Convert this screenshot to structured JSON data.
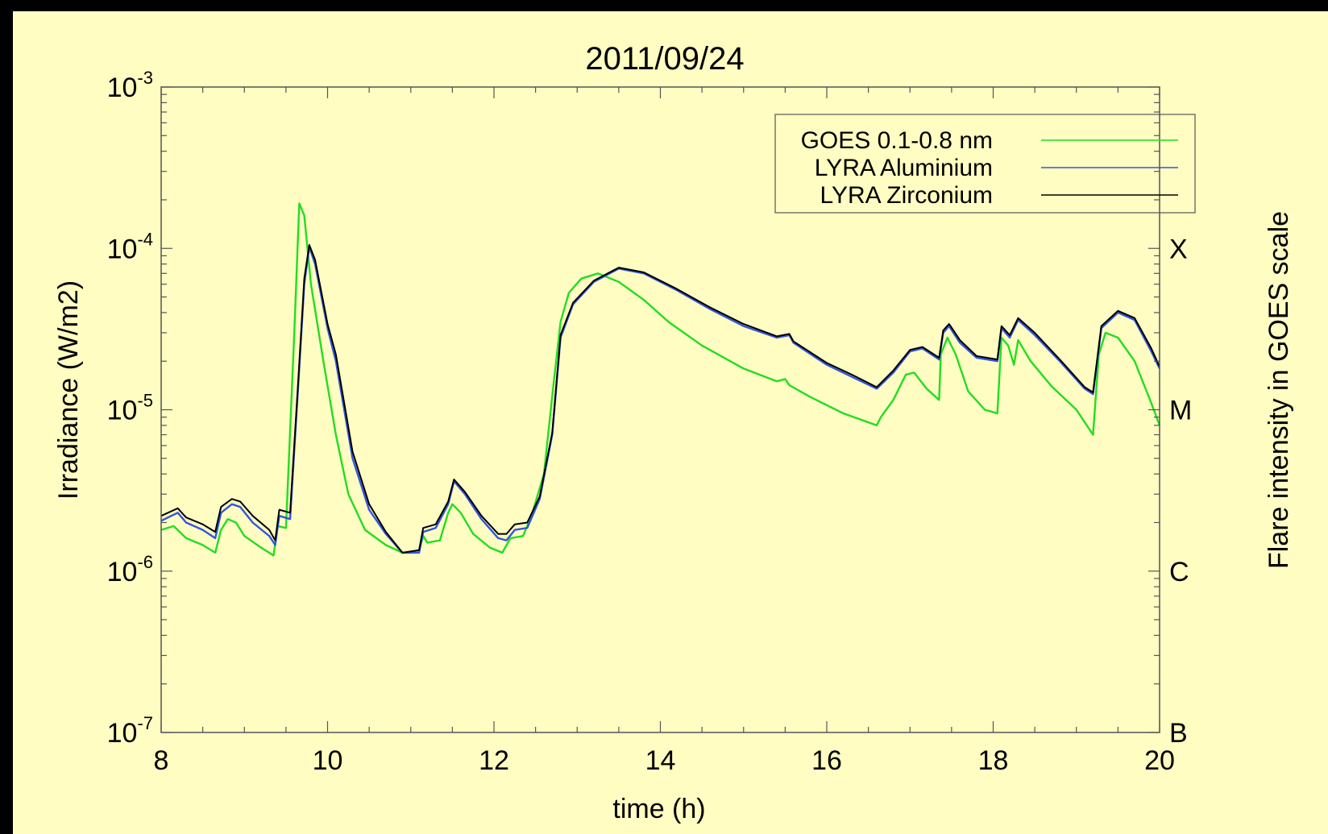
{
  "chart_data": {
    "type": "line",
    "title": "2011/09/24",
    "xlabel": "time (h)",
    "ylabel": "Irradiance (W/m2)",
    "y2label": "Flare intensity in GOES scale",
    "xlim": [
      8,
      20
    ],
    "ylim": [
      1e-07,
      0.001
    ],
    "yscale": "log",
    "x_ticks": [
      "8",
      "10",
      "12",
      "14",
      "16",
      "18",
      "20"
    ],
    "y_ticks": [
      {
        "base": "10",
        "exp": "-7",
        "value": 1e-07
      },
      {
        "base": "10",
        "exp": "-6",
        "value": 1e-06
      },
      {
        "base": "10",
        "exp": "-5",
        "value": 1e-05
      },
      {
        "base": "10",
        "exp": "-4",
        "value": 0.0001
      },
      {
        "base": "10",
        "exp": "-3",
        "value": 0.001
      }
    ],
    "goes_classes": [
      {
        "label": "B",
        "value": 1e-07
      },
      {
        "label": "C",
        "value": 1e-06
      },
      {
        "label": "M",
        "value": 1e-05
      },
      {
        "label": "X",
        "value": 0.0001
      }
    ],
    "legend_position": "top-right",
    "grid": false,
    "series": [
      {
        "name": "GOES 0.1-0.8 nm",
        "color": "#22dd22",
        "points": [
          [
            8.0,
            1.8e-06
          ],
          [
            8.15,
            1.9e-06
          ],
          [
            8.3,
            1.6e-06
          ],
          [
            8.5,
            1.45e-06
          ],
          [
            8.65,
            1.3e-06
          ],
          [
            8.72,
            1.8e-06
          ],
          [
            8.8,
            2.1e-06
          ],
          [
            8.9,
            2e-06
          ],
          [
            9.0,
            1.65e-06
          ],
          [
            9.2,
            1.4e-06
          ],
          [
            9.35,
            1.25e-06
          ],
          [
            9.4,
            1.9e-06
          ],
          [
            9.5,
            1.85e-06
          ],
          [
            9.6,
            3e-05
          ],
          [
            9.66,
            0.00019
          ],
          [
            9.72,
            0.00016
          ],
          [
            9.8,
            6e-05
          ],
          [
            9.95,
            2e-05
          ],
          [
            10.1,
            7e-06
          ],
          [
            10.25,
            3e-06
          ],
          [
            10.45,
            1.8e-06
          ],
          [
            10.7,
            1.45e-06
          ],
          [
            10.9,
            1.3e-06
          ],
          [
            11.0,
            1.3e-06
          ],
          [
            11.1,
            1.35e-06
          ],
          [
            11.15,
            1.65e-06
          ],
          [
            11.2,
            1.5e-06
          ],
          [
            11.35,
            1.55e-06
          ],
          [
            11.45,
            2.3e-06
          ],
          [
            11.5,
            2.6e-06
          ],
          [
            11.6,
            2.3e-06
          ],
          [
            11.75,
            1.7e-06
          ],
          [
            11.95,
            1.4e-06
          ],
          [
            12.1,
            1.3e-06
          ],
          [
            12.2,
            1.6e-06
          ],
          [
            12.35,
            1.65e-06
          ],
          [
            12.45,
            2.2e-06
          ],
          [
            12.6,
            4e-06
          ],
          [
            12.72,
            1.5e-05
          ],
          [
            12.8,
            3.5e-05
          ],
          [
            12.9,
            5.3e-05
          ],
          [
            13.05,
            6.5e-05
          ],
          [
            13.25,
            7e-05
          ],
          [
            13.5,
            6.2e-05
          ],
          [
            13.8,
            4.8e-05
          ],
          [
            14.1,
            3.5e-05
          ],
          [
            14.5,
            2.5e-05
          ],
          [
            15.0,
            1.8e-05
          ],
          [
            15.4,
            1.5e-05
          ],
          [
            15.5,
            1.55e-05
          ],
          [
            15.55,
            1.42e-05
          ],
          [
            15.8,
            1.2e-05
          ],
          [
            16.2,
            9.5e-06
          ],
          [
            16.6,
            8e-06
          ],
          [
            16.65,
            9e-06
          ],
          [
            16.8,
            1.15e-05
          ],
          [
            16.95,
            1.65e-05
          ],
          [
            17.05,
            1.7e-05
          ],
          [
            17.2,
            1.35e-05
          ],
          [
            17.35,
            1.15e-05
          ],
          [
            17.37,
            2.2e-05
          ],
          [
            17.45,
            2.8e-05
          ],
          [
            17.55,
            2.2e-05
          ],
          [
            17.7,
            1.3e-05
          ],
          [
            17.9,
            1e-05
          ],
          [
            18.05,
            9.5e-06
          ],
          [
            18.1,
            2.8e-05
          ],
          [
            18.18,
            2.5e-05
          ],
          [
            18.25,
            1.9e-05
          ],
          [
            18.3,
            2.7e-05
          ],
          [
            18.45,
            2e-05
          ],
          [
            18.7,
            1.4e-05
          ],
          [
            19.0,
            1e-05
          ],
          [
            19.2,
            7e-06
          ],
          [
            19.27,
            2.2e-05
          ],
          [
            19.35,
            3e-05
          ],
          [
            19.5,
            2.8e-05
          ],
          [
            19.7,
            2e-05
          ],
          [
            19.9,
            1.1e-05
          ],
          [
            20.0,
            8e-06
          ]
        ]
      },
      {
        "name": "LYRA Aluminium",
        "color": "#3355dd",
        "points": [
          [
            8.0,
            2.05e-06
          ],
          [
            8.2,
            2.3e-06
          ],
          [
            8.3,
            2e-06
          ],
          [
            8.5,
            1.8e-06
          ],
          [
            8.65,
            1.6e-06
          ],
          [
            8.72,
            2.3e-06
          ],
          [
            8.85,
            2.6e-06
          ],
          [
            8.95,
            2.5e-06
          ],
          [
            9.1,
            2e-06
          ],
          [
            9.3,
            1.65e-06
          ],
          [
            9.37,
            1.45e-06
          ],
          [
            9.42,
            2.2e-06
          ],
          [
            9.55,
            2.1e-06
          ],
          [
            9.65,
            1.5e-05
          ],
          [
            9.72,
            6e-05
          ],
          [
            9.78,
            0.000102
          ],
          [
            9.85,
            8e-05
          ],
          [
            10.0,
            3.2e-05
          ],
          [
            10.1,
            2e-05
          ],
          [
            10.3,
            5e-06
          ],
          [
            10.5,
            2.4e-06
          ],
          [
            10.7,
            1.7e-06
          ],
          [
            10.9,
            1.3e-06
          ],
          [
            11.1,
            1.3e-06
          ],
          [
            11.15,
            1.75e-06
          ],
          [
            11.3,
            1.85e-06
          ],
          [
            11.45,
            2.6e-06
          ],
          [
            11.52,
            3.6e-06
          ],
          [
            11.65,
            3e-06
          ],
          [
            11.85,
            2.1e-06
          ],
          [
            12.05,
            1.6e-06
          ],
          [
            12.15,
            1.55e-06
          ],
          [
            12.25,
            1.8e-06
          ],
          [
            12.4,
            1.85e-06
          ],
          [
            12.55,
            2.8e-06
          ],
          [
            12.7,
            7e-06
          ],
          [
            12.8,
            2.8e-05
          ],
          [
            12.95,
            4.5e-05
          ],
          [
            13.2,
            6.2e-05
          ],
          [
            13.5,
            7.5e-05
          ],
          [
            13.8,
            7e-05
          ],
          [
            14.2,
            5.5e-05
          ],
          [
            14.6,
            4.2e-05
          ],
          [
            15.0,
            3.3e-05
          ],
          [
            15.4,
            2.8e-05
          ],
          [
            15.55,
            2.9e-05
          ],
          [
            15.6,
            2.6e-05
          ],
          [
            16.0,
            1.9e-05
          ],
          [
            16.3,
            1.6e-05
          ],
          [
            16.6,
            1.35e-05
          ],
          [
            16.8,
            1.7e-05
          ],
          [
            17.0,
            2.3e-05
          ],
          [
            17.15,
            2.4e-05
          ],
          [
            17.35,
            2.05e-05
          ],
          [
            17.4,
            3e-05
          ],
          [
            17.47,
            3.3e-05
          ],
          [
            17.6,
            2.6e-05
          ],
          [
            17.8,
            2.1e-05
          ],
          [
            18.05,
            2e-05
          ],
          [
            18.1,
            3.2e-05
          ],
          [
            18.2,
            2.8e-05
          ],
          [
            18.3,
            3.6e-05
          ],
          [
            18.5,
            2.9e-05
          ],
          [
            18.8,
            2e-05
          ],
          [
            19.1,
            1.35e-05
          ],
          [
            19.2,
            1.25e-05
          ],
          [
            19.3,
            3.2e-05
          ],
          [
            19.5,
            4e-05
          ],
          [
            19.7,
            3.6e-05
          ],
          [
            19.9,
            2.3e-05
          ],
          [
            20.0,
            1.8e-05
          ]
        ]
      },
      {
        "name": "LYRA Zirconium",
        "color": "#000000",
        "points": [
          [
            8.0,
            2.2e-06
          ],
          [
            8.2,
            2.45e-06
          ],
          [
            8.3,
            2.15e-06
          ],
          [
            8.5,
            1.95e-06
          ],
          [
            8.65,
            1.75e-06
          ],
          [
            8.72,
            2.5e-06
          ],
          [
            8.85,
            2.8e-06
          ],
          [
            8.95,
            2.7e-06
          ],
          [
            9.1,
            2.2e-06
          ],
          [
            9.3,
            1.8e-06
          ],
          [
            9.37,
            1.55e-06
          ],
          [
            9.42,
            2.4e-06
          ],
          [
            9.55,
            2.3e-06
          ],
          [
            9.65,
            1.6e-05
          ],
          [
            9.72,
            6.5e-05
          ],
          [
            9.78,
            0.000105
          ],
          [
            9.85,
            8.5e-05
          ],
          [
            10.0,
            3.4e-05
          ],
          [
            10.1,
            2.2e-05
          ],
          [
            10.3,
            5.5e-06
          ],
          [
            10.5,
            2.6e-06
          ],
          [
            10.7,
            1.75e-06
          ],
          [
            10.9,
            1.3e-06
          ],
          [
            11.1,
            1.35e-06
          ],
          [
            11.15,
            1.85e-06
          ],
          [
            11.3,
            1.95e-06
          ],
          [
            11.45,
            2.7e-06
          ],
          [
            11.52,
            3.7e-06
          ],
          [
            11.65,
            3.1e-06
          ],
          [
            11.85,
            2.2e-06
          ],
          [
            12.05,
            1.7e-06
          ],
          [
            12.15,
            1.7e-06
          ],
          [
            12.25,
            1.95e-06
          ],
          [
            12.4,
            2e-06
          ],
          [
            12.55,
            2.9e-06
          ],
          [
            12.7,
            7.2e-06
          ],
          [
            12.8,
            2.9e-05
          ],
          [
            12.95,
            4.6e-05
          ],
          [
            13.2,
            6.3e-05
          ],
          [
            13.5,
            7.6e-05
          ],
          [
            13.8,
            7.1e-05
          ],
          [
            14.2,
            5.6e-05
          ],
          [
            14.6,
            4.3e-05
          ],
          [
            15.0,
            3.4e-05
          ],
          [
            15.4,
            2.85e-05
          ],
          [
            15.55,
            2.95e-05
          ],
          [
            15.6,
            2.65e-05
          ],
          [
            16.0,
            1.95e-05
          ],
          [
            16.3,
            1.65e-05
          ],
          [
            16.6,
            1.38e-05
          ],
          [
            16.8,
            1.75e-05
          ],
          [
            17.0,
            2.35e-05
          ],
          [
            17.15,
            2.45e-05
          ],
          [
            17.35,
            2.1e-05
          ],
          [
            17.4,
            3.1e-05
          ],
          [
            17.47,
            3.4e-05
          ],
          [
            17.6,
            2.7e-05
          ],
          [
            17.8,
            2.15e-05
          ],
          [
            18.05,
            2.05e-05
          ],
          [
            18.1,
            3.3e-05
          ],
          [
            18.2,
            2.9e-05
          ],
          [
            18.3,
            3.7e-05
          ],
          [
            18.5,
            3e-05
          ],
          [
            18.8,
            2.05e-05
          ],
          [
            19.1,
            1.38e-05
          ],
          [
            19.2,
            1.28e-05
          ],
          [
            19.3,
            3.3e-05
          ],
          [
            19.5,
            4.1e-05
          ],
          [
            19.7,
            3.7e-05
          ],
          [
            19.9,
            2.4e-05
          ],
          [
            20.0,
            1.85e-05
          ]
        ]
      }
    ]
  }
}
